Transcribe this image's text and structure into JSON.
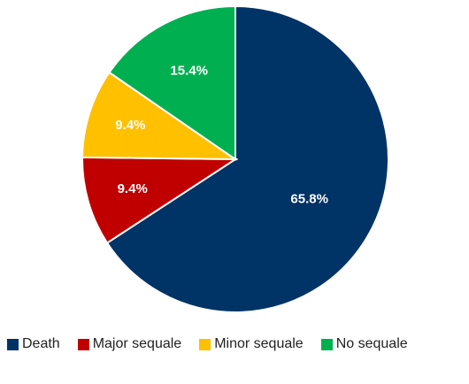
{
  "chart_data": {
    "type": "pie",
    "categories": [
      "Death",
      "Major sequale",
      "Minor sequale",
      "No sequale"
    ],
    "values": [
      65.8,
      9.4,
      9.4,
      15.4
    ],
    "labels": [
      "65.8%",
      "9.4%",
      "9.4%",
      "15.4%"
    ],
    "colors": [
      "#003366",
      "#C00000",
      "#FFC000",
      "#00B050"
    ],
    "label_colors": [
      "#ffffff",
      "#ffffff",
      "#ffffff",
      "#ffffff"
    ],
    "start": "12 o'clock",
    "direction": "clockwise",
    "legend_position": "bottom",
    "title": ""
  }
}
